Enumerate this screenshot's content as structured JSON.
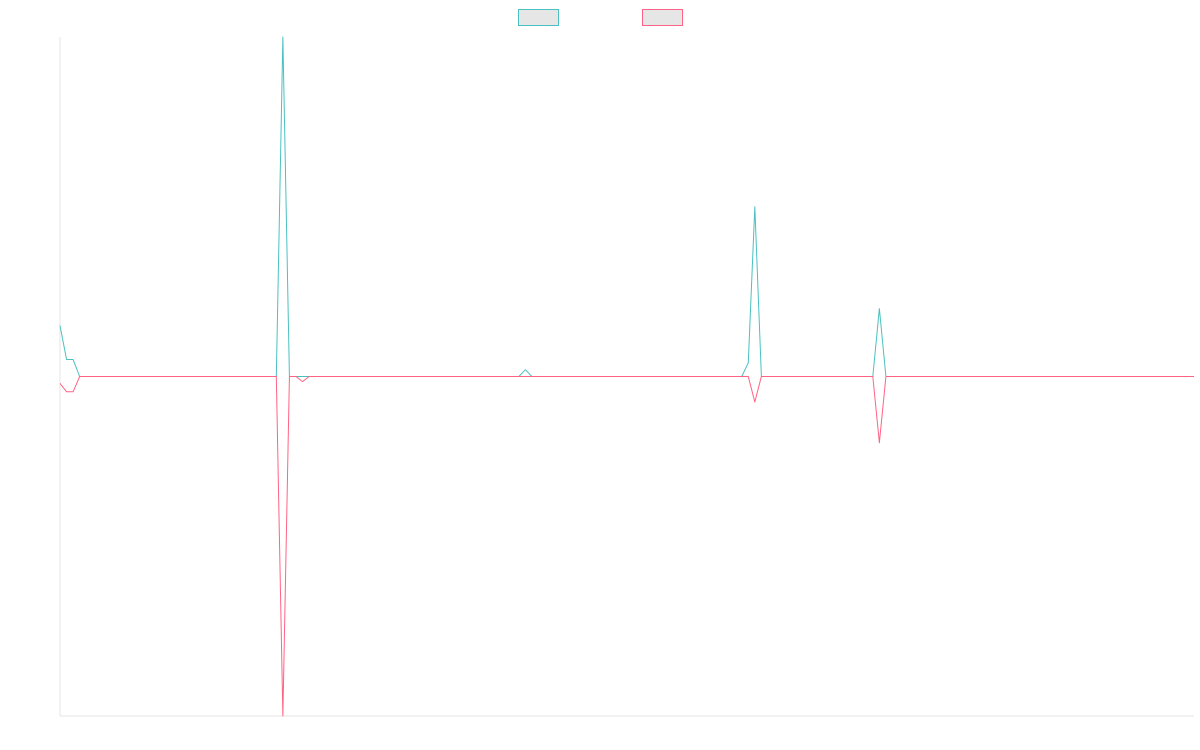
{
  "chart_data": {
    "type": "line",
    "title": "",
    "xlabel": "",
    "ylabel": "",
    "grid": false,
    "legend": "top-center",
    "x_range": [
      0,
      172
    ],
    "ylim": [
      -1,
      1
    ],
    "series": [
      {
        "name": "",
        "color": "#4bc0c0",
        "fill": "#e6e6e6",
        "values": [
          0.15,
          0.05,
          0.05,
          0.0,
          0.0,
          0.0,
          0.0,
          0.0,
          0.0,
          0.0,
          0.0,
          0.0,
          0.0,
          0.0,
          0.0,
          0.0,
          0.0,
          0.0,
          0.0,
          0.0,
          0.0,
          0.0,
          0.0,
          0.0,
          0.0,
          0.0,
          0.0,
          0.0,
          0.0,
          0.0,
          0.0,
          0.0,
          0.0,
          0.0,
          1.0,
          0.0,
          0.0,
          0.0,
          0.0,
          0.0,
          0.0,
          0.0,
          0.0,
          0.0,
          0.0,
          0.0,
          0.0,
          0.0,
          0.0,
          0.0,
          0.0,
          0.0,
          0.0,
          0.0,
          0.0,
          0.0,
          0.0,
          0.0,
          0.0,
          0.0,
          0.0,
          0.0,
          0.0,
          0.0,
          0.0,
          0.0,
          0.0,
          0.0,
          0.0,
          0.0,
          0.0,
          0.02,
          0.0,
          0.0,
          0.0,
          0.0,
          0.0,
          0.0,
          0.0,
          0.0,
          0.0,
          0.0,
          0.0,
          0.0,
          0.0,
          0.0,
          0.0,
          0.0,
          0.0,
          0.0,
          0.0,
          0.0,
          0.0,
          0.0,
          0.0,
          0.0,
          0.0,
          0.0,
          0.0,
          0.0,
          0.0,
          0.0,
          0.0,
          0.0,
          0.0,
          0.04,
          0.5,
          0.0,
          0.0,
          0.0,
          0.0,
          0.0,
          0.0,
          0.0,
          0.0,
          0.0,
          0.0,
          0.0,
          0.0,
          0.0,
          0.0,
          0.0,
          0.0,
          0.0,
          0.0,
          0.2,
          0.0,
          0.0,
          0.0,
          0.0,
          0.0,
          0.0,
          0.0,
          0.0,
          0.0,
          0.0,
          0.0,
          0.0,
          0.0,
          0.0,
          0.0,
          0.0,
          0.0,
          0.0,
          0.0,
          0.0,
          0.0,
          0.0,
          0.0,
          0.0,
          0.0,
          0.0,
          0.0,
          0.0,
          0.0,
          0.0,
          0.0,
          0.0,
          0.0,
          0.0,
          0.0,
          0.0,
          0.0,
          0.0,
          0.0,
          0.0,
          0.0,
          0.0,
          0.0,
          0.0,
          0.0,
          0.0,
          0.0,
          0.0
        ]
      },
      {
        "name": "",
        "color": "#ff6384",
        "fill": "#e6e6e6",
        "values": [
          -0.02,
          -0.045,
          -0.045,
          0.0,
          0.0,
          0.0,
          0.0,
          0.0,
          0.0,
          0.0,
          0.0,
          0.0,
          0.0,
          0.0,
          0.0,
          0.0,
          0.0,
          0.0,
          0.0,
          0.0,
          0.0,
          0.0,
          0.0,
          0.0,
          0.0,
          0.0,
          0.0,
          0.0,
          0.0,
          0.0,
          0.0,
          0.0,
          0.0,
          0.0,
          -1.0,
          0.0,
          0.0,
          -0.015,
          0.0,
          0.0,
          0.0,
          0.0,
          0.0,
          0.0,
          0.0,
          0.0,
          0.0,
          0.0,
          0.0,
          0.0,
          0.0,
          0.0,
          0.0,
          0.0,
          0.0,
          0.0,
          0.0,
          0.0,
          0.0,
          0.0,
          0.0,
          0.0,
          0.0,
          0.0,
          0.0,
          0.0,
          0.0,
          0.0,
          0.0,
          0.0,
          0.0,
          0.0,
          0.0,
          0.0,
          0.0,
          0.0,
          0.0,
          0.0,
          0.0,
          0.0,
          0.0,
          0.0,
          0.0,
          0.0,
          0.0,
          0.0,
          0.0,
          0.0,
          0.0,
          0.0,
          0.0,
          0.0,
          0.0,
          0.0,
          0.0,
          0.0,
          0.0,
          0.0,
          0.0,
          0.0,
          0.0,
          0.0,
          0.0,
          0.0,
          0.0,
          0.0,
          -0.075,
          0.0,
          0.0,
          0.0,
          0.0,
          0.0,
          0.0,
          0.0,
          0.0,
          0.0,
          0.0,
          0.0,
          0.0,
          0.0,
          0.0,
          0.0,
          0.0,
          0.0,
          0.0,
          -0.195,
          0.0,
          0.0,
          0.0,
          0.0,
          0.0,
          0.0,
          0.0,
          0.0,
          0.0,
          0.0,
          0.0,
          0.0,
          0.0,
          0.0,
          0.0,
          0.0,
          0.0,
          0.0,
          0.0,
          0.0,
          0.0,
          0.0,
          0.0,
          0.0,
          0.0,
          0.0,
          0.0,
          0.0,
          0.0,
          0.0,
          0.0,
          0.0,
          0.0,
          0.0,
          0.0,
          0.0,
          0.0,
          0.0,
          0.0,
          0.0,
          0.0,
          0.0,
          0.0,
          0.0,
          0.0,
          0.0,
          0.0,
          0.0
        ]
      }
    ],
    "axis_color": "#e6e6e6"
  }
}
